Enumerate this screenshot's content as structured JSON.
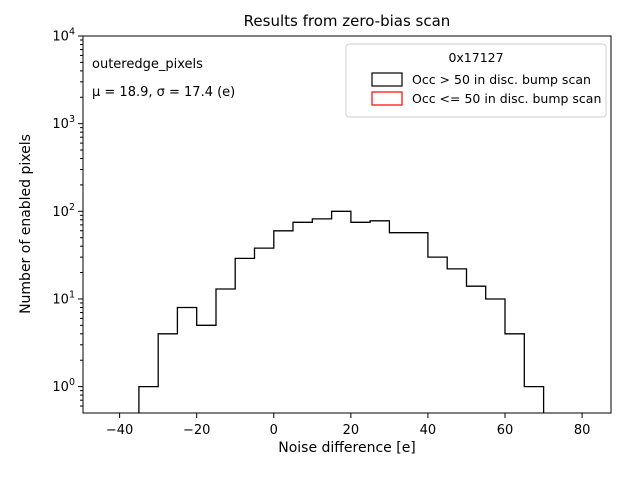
{
  "chart_data": {
    "type": "histogram-step",
    "title": "Results from zero-bias scan",
    "xlabel": "Noise difference [e]",
    "ylabel": "Number of enabled pixels",
    "xscale": "linear",
    "yscale": "log",
    "xlim": [
      -49.5,
      87.5
    ],
    "ylim": [
      0.5,
      10000
    ],
    "x_ticks": [
      -40,
      -20,
      0,
      20,
      40,
      60,
      80
    ],
    "y_ticks": [
      1,
      10,
      100,
      1000,
      10000
    ],
    "grid": false,
    "bin_width": 5,
    "series": [
      {
        "name": "Occ > 50 in disc. bump scan",
        "color": "#000000",
        "bin_edges": [
          -35,
          -30,
          -25,
          -20,
          -15,
          -10,
          -5,
          0,
          5,
          10,
          15,
          20,
          25,
          30,
          35,
          40,
          45,
          50,
          55,
          60,
          65,
          70
        ],
        "counts": [
          1,
          4,
          8,
          5,
          13,
          29,
          38,
          60,
          75,
          82,
          100,
          75,
          78,
          57,
          57,
          30,
          22,
          14,
          10,
          4,
          1
        ]
      }
    ],
    "legend": {
      "position": "upper right",
      "title": "0x17127",
      "entries": [
        {
          "label": "Occ > 50 in disc. bump scan",
          "color": "#000000"
        },
        {
          "label": "Occ <= 50 in disc. bump scan",
          "color": "#ff0000"
        }
      ]
    },
    "annotations": [
      {
        "text": "outeredge_pixels"
      },
      {
        "text": "μ = 18.9, σ = 17.4 (e)"
      }
    ]
  },
  "colors": {
    "background": "#ffffff",
    "axes_and_text": "#000000",
    "occ_gt_50": "#000000",
    "occ_le_50": "#ff0000",
    "legend_border": "#cccccc"
  }
}
